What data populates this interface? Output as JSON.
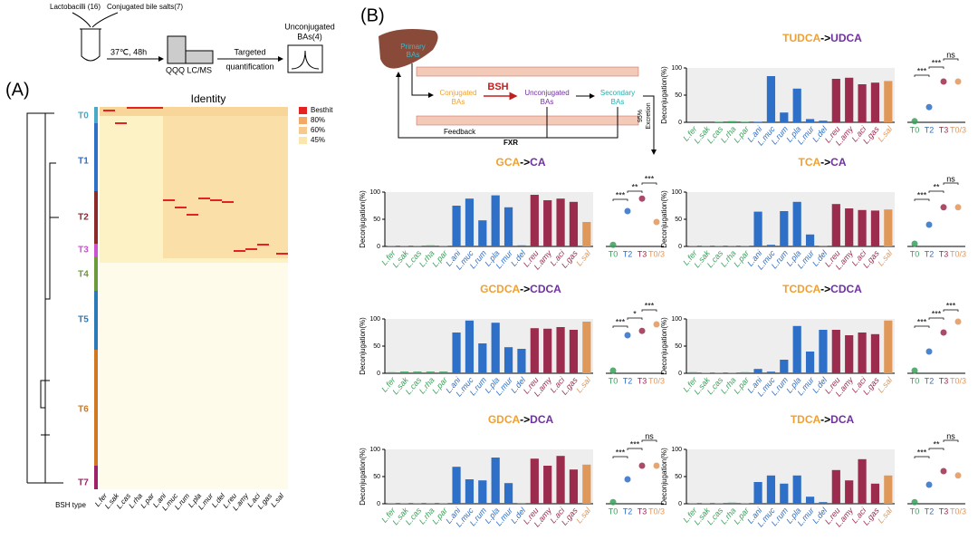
{
  "panel_a": {
    "label": "(A)",
    "workflow": {
      "bacteria": "Lactobacilli (16)",
      "salts": "Conjugated bile salts(7)",
      "culture": "37℃, 48h",
      "instrument": "QQQ LC/MS",
      "step": [
        "Targeted",
        "quantification"
      ],
      "result": [
        "Unconjugated",
        "BAs(4)"
      ]
    },
    "heatmap": {
      "title": "Identity",
      "legend": [
        "Besthit",
        "80%",
        "60%",
        "45%"
      ],
      "legend_colors": [
        "#e32222",
        "#f2a866",
        "#f6c98e",
        "#fbe6b0"
      ],
      "clusters": [
        "T0",
        "T1",
        "T2",
        "T3",
        "T4",
        "T5",
        "T6",
        "T7"
      ],
      "cluster_colors": [
        "#4aa8c8",
        "#2e6fc7",
        "#8b2a2a",
        "#d050d0",
        "#6a9a3a",
        "#2a7ab8",
        "#d07820",
        "#a0206a"
      ],
      "type_label": "BSH type",
      "strains": [
        "L.fer",
        "L.sak",
        "L.cas",
        "L.rha",
        "L.par",
        "L.ani",
        "L.muc",
        "L.rum",
        "L.pla",
        "L.mur",
        "L.del",
        "L.reu",
        "L.amy",
        "L.aci",
        "L.gas",
        "L.sal"
      ]
    }
  },
  "panel_b": {
    "label": "(B)",
    "diagram": {
      "primary": [
        "Primary",
        "BAs"
      ],
      "conjugated": [
        "Conjugated",
        "BAs"
      ],
      "enzyme": "BSH",
      "unconjugated": [
        "Unconjugated",
        "BAs"
      ],
      "secondary": [
        "Secondary",
        "BAs"
      ],
      "excretion": [
        "95%",
        "Excretion"
      ],
      "feedback": "Feedback",
      "receptor": "FXR"
    }
  },
  "chart_data": [
    {
      "type": "bar",
      "title_parts": [
        "TUDCA",
        "->",
        "UDCA"
      ],
      "title_colors": [
        "#f0a030",
        "#000000",
        "#7030a0"
      ],
      "ylabel": "Deconjugation(%)",
      "ylim": [
        0,
        100
      ],
      "yticks": [
        0,
        50,
        100
      ],
      "categories": [
        "L.fer",
        "L.sak",
        "L.cas",
        "L.rha",
        "L.par",
        "L.ani",
        "L.muc",
        "L.rum",
        "L.pla",
        "L.mur",
        "L.del",
        "L.reu",
        "L.amy",
        "L.aci",
        "L.gas",
        "L.sal"
      ],
      "colors": [
        "#3aa05a",
        "#3aa05a",
        "#3aa05a",
        "#3aa05a",
        "#3aa05a",
        "#2e6fc7",
        "#2e6fc7",
        "#2e6fc7",
        "#2e6fc7",
        "#2e6fc7",
        "#2e6fc7",
        "#9b2c4e",
        "#9b2c4e",
        "#9b2c4e",
        "#9b2c4e",
        "#e0975a"
      ],
      "values": [
        0,
        0,
        1,
        2,
        1,
        1,
        85,
        18,
        62,
        6,
        3,
        80,
        82,
        70,
        73,
        76
      ],
      "summary": {
        "categories": [
          "T0",
          "T2",
          "T3",
          "T0/3"
        ],
        "colors": [
          "#3aa05a",
          "#2e6fc7",
          "#9b2c4e",
          "#e0975a"
        ],
        "values": [
          2,
          28,
          75,
          75
        ],
        "significance": [
          "***",
          "***",
          "ns"
        ]
      }
    },
    {
      "type": "bar",
      "title_parts": [
        "GCA",
        "->",
        "CA"
      ],
      "title_colors": [
        "#f0a030",
        "#000000",
        "#7030a0"
      ],
      "ylabel": "Deconjugation(%)",
      "ylim": [
        0,
        100
      ],
      "yticks": [
        0,
        50,
        100
      ],
      "categories": [
        "L.fer",
        "L.sak",
        "L.cas",
        "L.rha",
        "L.par",
        "L.ani",
        "L.muc",
        "L.rum",
        "L.pla",
        "L.mur",
        "L.del",
        "L.reu",
        "L.amy",
        "L.aci",
        "L.gas",
        "L.sal"
      ],
      "colors": [
        "#3aa05a",
        "#3aa05a",
        "#3aa05a",
        "#3aa05a",
        "#3aa05a",
        "#2e6fc7",
        "#2e6fc7",
        "#2e6fc7",
        "#2e6fc7",
        "#2e6fc7",
        "#2e6fc7",
        "#9b2c4e",
        "#9b2c4e",
        "#9b2c4e",
        "#9b2c4e",
        "#e0975a"
      ],
      "values": [
        1,
        1,
        1,
        2,
        1,
        75,
        88,
        48,
        94,
        72,
        2,
        95,
        85,
        88,
        82,
        45
      ],
      "summary": {
        "categories": [
          "T0",
          "T2",
          "T3",
          "T0/3"
        ],
        "colors": [
          "#3aa05a",
          "#2e6fc7",
          "#9b2c4e",
          "#e0975a"
        ],
        "values": [
          3,
          65,
          88,
          45
        ],
        "significance": [
          "***",
          "**",
          "***"
        ]
      }
    },
    {
      "type": "bar",
      "title_parts": [
        "TCA",
        "->",
        "CA"
      ],
      "title_colors": [
        "#f0a030",
        "#000000",
        "#7030a0"
      ],
      "ylabel": "Deconjugation(%)",
      "ylim": [
        0,
        100
      ],
      "yticks": [
        0,
        50,
        100
      ],
      "categories": [
        "L.fer",
        "L.sak",
        "L.cas",
        "L.rha",
        "L.par",
        "L.ani",
        "L.muc",
        "L.rum",
        "L.pla",
        "L.mur",
        "L.del",
        "L.reu",
        "L.amy",
        "L.aci",
        "L.gas",
        "L.sal"
      ],
      "colors": [
        "#3aa05a",
        "#3aa05a",
        "#3aa05a",
        "#3aa05a",
        "#3aa05a",
        "#2e6fc7",
        "#2e6fc7",
        "#2e6fc7",
        "#2e6fc7",
        "#2e6fc7",
        "#2e6fc7",
        "#9b2c4e",
        "#9b2c4e",
        "#9b2c4e",
        "#9b2c4e",
        "#e0975a"
      ],
      "values": [
        1,
        1,
        1,
        1,
        1,
        64,
        3,
        65,
        82,
        22,
        1,
        78,
        70,
        67,
        66,
        68
      ],
      "summary": {
        "categories": [
          "T0",
          "T2",
          "T3",
          "T0/3"
        ],
        "colors": [
          "#3aa05a",
          "#2e6fc7",
          "#9b2c4e",
          "#e0975a"
        ],
        "values": [
          5,
          40,
          72,
          72
        ],
        "significance": [
          "***",
          "**",
          "ns"
        ]
      }
    },
    {
      "type": "bar",
      "title_parts": [
        "GCDCA",
        "->",
        "CDCA"
      ],
      "title_colors": [
        "#f0a030",
        "#000000",
        "#7030a0"
      ],
      "ylabel": "Deconjugation(%)",
      "ylim": [
        0,
        100
      ],
      "yticks": [
        0,
        50,
        100
      ],
      "categories": [
        "L.fer",
        "L.sak",
        "L.cas",
        "L.rha",
        "L.par",
        "L.ani",
        "L.muc",
        "L.rum",
        "L.pla",
        "L.mur",
        "L.del",
        "L.reu",
        "L.amy",
        "L.aci",
        "L.gas",
        "L.sal"
      ],
      "colors": [
        "#3aa05a",
        "#3aa05a",
        "#3aa05a",
        "#3aa05a",
        "#3aa05a",
        "#2e6fc7",
        "#2e6fc7",
        "#2e6fc7",
        "#2e6fc7",
        "#2e6fc7",
        "#2e6fc7",
        "#9b2c4e",
        "#9b2c4e",
        "#9b2c4e",
        "#9b2c4e",
        "#e0975a"
      ],
      "values": [
        2,
        3,
        3,
        3,
        3,
        75,
        97,
        55,
        93,
        48,
        45,
        83,
        82,
        85,
        80,
        95
      ],
      "summary": {
        "categories": [
          "T0",
          "T2",
          "T3",
          "T0/3"
        ],
        "colors": [
          "#3aa05a",
          "#2e6fc7",
          "#9b2c4e",
          "#e0975a"
        ],
        "values": [
          5,
          70,
          78,
          90
        ],
        "significance": [
          "***",
          "*",
          "***"
        ]
      }
    },
    {
      "type": "bar",
      "title_parts": [
        "TCDCA",
        "->",
        "CDCA"
      ],
      "title_colors": [
        "#f0a030",
        "#000000",
        "#7030a0"
      ],
      "ylabel": "Deconjugation(%)",
      "ylim": [
        0,
        100
      ],
      "yticks": [
        0,
        50,
        100
      ],
      "categories": [
        "L.fer",
        "L.sak",
        "L.cas",
        "L.rha",
        "L.par",
        "L.ani",
        "L.muc",
        "L.rum",
        "L.pla",
        "L.mur",
        "L.del",
        "L.reu",
        "L.amy",
        "L.aci",
        "L.gas",
        "L.sal"
      ],
      "colors": [
        "#3aa05a",
        "#3aa05a",
        "#3aa05a",
        "#3aa05a",
        "#3aa05a",
        "#2e6fc7",
        "#2e6fc7",
        "#2e6fc7",
        "#2e6fc7",
        "#2e6fc7",
        "#2e6fc7",
        "#9b2c4e",
        "#9b2c4e",
        "#9b2c4e",
        "#9b2c4e",
        "#e0975a"
      ],
      "values": [
        2,
        1,
        1,
        1,
        2,
        8,
        3,
        25,
        87,
        40,
        80,
        80,
        70,
        75,
        72,
        97
      ],
      "summary": {
        "categories": [
          "T0",
          "T2",
          "T3",
          "T0/3"
        ],
        "colors": [
          "#3aa05a",
          "#2e6fc7",
          "#9b2c4e",
          "#e0975a"
        ],
        "values": [
          5,
          40,
          75,
          95
        ],
        "significance": [
          "***",
          "***",
          "***"
        ]
      }
    },
    {
      "type": "bar",
      "title_parts": [
        "GDCA",
        "->",
        "DCA"
      ],
      "title_colors": [
        "#f0a030",
        "#000000",
        "#7030a0"
      ],
      "ylabel": "Deconjugation(%)",
      "ylim": [
        0,
        100
      ],
      "yticks": [
        0,
        50,
        100
      ],
      "categories": [
        "L.fer",
        "L.sak",
        "L.cas",
        "L.rha",
        "L.par",
        "L.ani",
        "L.muc",
        "L.rum",
        "L.pla",
        "L.mur",
        "L.del",
        "L.reu",
        "L.amy",
        "L.aci",
        "L.gas",
        "L.sal"
      ],
      "colors": [
        "#3aa05a",
        "#3aa05a",
        "#3aa05a",
        "#3aa05a",
        "#3aa05a",
        "#2e6fc7",
        "#2e6fc7",
        "#2e6fc7",
        "#2e6fc7",
        "#2e6fc7",
        "#2e6fc7",
        "#9b2c4e",
        "#9b2c4e",
        "#9b2c4e",
        "#9b2c4e",
        "#e0975a"
      ],
      "values": [
        1,
        1,
        1,
        1,
        1,
        68,
        45,
        43,
        85,
        38,
        1,
        83,
        70,
        88,
        63,
        72
      ],
      "summary": {
        "categories": [
          "T0",
          "T2",
          "T3",
          "T0/3"
        ],
        "colors": [
          "#3aa05a",
          "#2e6fc7",
          "#9b2c4e",
          "#e0975a"
        ],
        "values": [
          3,
          45,
          70,
          70
        ],
        "significance": [
          "***",
          "***",
          "ns"
        ]
      }
    },
    {
      "type": "bar",
      "title_parts": [
        "TDCA",
        "->",
        "DCA"
      ],
      "title_colors": [
        "#f0a030",
        "#000000",
        "#7030a0"
      ],
      "ylabel": "Deconjugation(%)",
      "ylim": [
        0,
        100
      ],
      "yticks": [
        0,
        50,
        100
      ],
      "categories": [
        "L.fer",
        "L.sak",
        "L.cas",
        "L.rha",
        "L.par",
        "L.ani",
        "L.muc",
        "L.rum",
        "L.pla",
        "L.mur",
        "L.del",
        "L.reu",
        "L.amy",
        "L.aci",
        "L.gas",
        "L.sal"
      ],
      "colors": [
        "#3aa05a",
        "#3aa05a",
        "#3aa05a",
        "#3aa05a",
        "#3aa05a",
        "#2e6fc7",
        "#2e6fc7",
        "#2e6fc7",
        "#2e6fc7",
        "#2e6fc7",
        "#2e6fc7",
        "#9b2c4e",
        "#9b2c4e",
        "#9b2c4e",
        "#9b2c4e",
        "#e0975a"
      ],
      "values": [
        1,
        1,
        1,
        2,
        1,
        40,
        52,
        37,
        52,
        13,
        3,
        62,
        43,
        82,
        37,
        52
      ],
      "summary": {
        "categories": [
          "T0",
          "T2",
          "T3",
          "T0/3"
        ],
        "colors": [
          "#3aa05a",
          "#2e6fc7",
          "#9b2c4e",
          "#e0975a"
        ],
        "values": [
          3,
          35,
          60,
          52
        ],
        "significance": [
          "***",
          "**",
          "ns"
        ]
      }
    }
  ]
}
